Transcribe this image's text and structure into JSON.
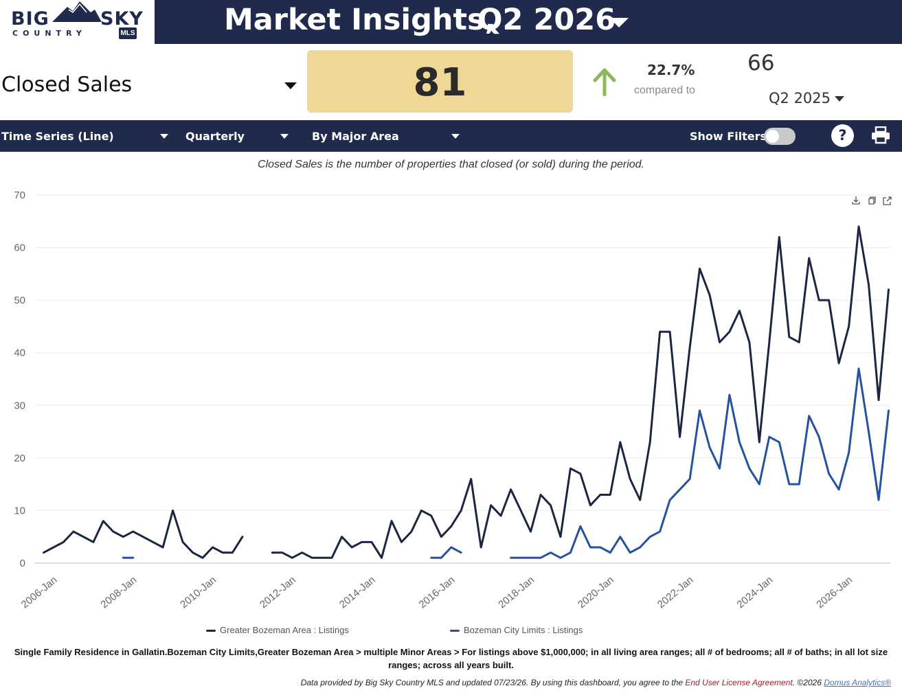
{
  "header": {
    "logo_big": "BIG",
    "logo_sky": "SKY",
    "logo_country": "COUNTRY",
    "logo_mls": "MLS",
    "title": "Market Insights,",
    "period": "Q2 2026"
  },
  "metric": {
    "name": "Closed Sales",
    "value": "81",
    "pct_change": "22.7%",
    "compared_to": "compared to",
    "prior_value": "66",
    "prior_period": "Q2 2025"
  },
  "toolbar": {
    "chart_type": "Time Series (Line)",
    "frequency": "Quarterly",
    "grouping": "By Major Area",
    "show_filters_label": "Show Filters:",
    "help_label": "?"
  },
  "description": "Closed Sales is the number of properties that closed (or sold) during the period.",
  "filter_description": "Single Family Residence in Gallatin.Bozeman City Limits,Greater Bozeman Area > multiple Minor Areas > For listings above $1,000,000; in all living area ranges; all # of bedrooms; all # of baths; in all lot size ranges; across all years built.",
  "footer": {
    "text": "Data provided by Big Sky Country MLS and updated 07/23/26.  By using this dashboard, you agree to the ",
    "eula": "End User License Agreement",
    "copyright": ".  ©2026 ",
    "domus": "Domus Analytics®"
  },
  "colors": {
    "navy": "#1f2a4d",
    "value_box": "#efd795",
    "up_arrow": "#8cb85c",
    "series_greater_bozeman": "#1c2541",
    "series_bozeman_city": "#2451a0"
  },
  "chart_data": {
    "type": "line",
    "x_start": "2005-Q4",
    "x_tick_labels": [
      "2006-Jan",
      "2008-Jan",
      "2010-Jan",
      "2012-Jan",
      "2014-Jan",
      "2016-Jan",
      "2018-Jan",
      "2020-Jan",
      "2022-Jan",
      "2024-Jan",
      "2026-Jan"
    ],
    "y_ticks": [
      0,
      10,
      20,
      30,
      40,
      50,
      60,
      70
    ],
    "ylim": [
      0,
      70
    ],
    "grid": true,
    "legend_position": "bottom",
    "series": [
      {
        "name": "Greater Bozeman Area : Listings",
        "color": "#1c2541",
        "values": [
          2,
          3,
          4,
          6,
          5,
          4,
          8,
          6,
          5,
          6,
          5,
          4,
          3,
          10,
          4,
          2,
          1,
          3,
          2,
          2,
          5,
          null,
          null,
          2,
          2,
          1,
          2,
          1,
          1,
          1,
          5,
          3,
          4,
          4,
          1,
          8,
          4,
          6,
          10,
          9,
          5,
          7,
          10,
          16,
          3,
          11,
          9,
          14,
          10,
          6,
          13,
          11,
          5,
          18,
          17,
          11,
          13,
          13,
          23,
          16,
          12,
          23,
          44,
          44,
          24,
          41,
          56,
          51,
          42,
          44,
          48,
          42,
          23,
          42,
          62,
          43,
          42,
          58,
          50,
          50,
          38,
          45,
          64,
          53,
          31,
          52
        ]
      },
      {
        "name": "Bozeman City Limits : Listings",
        "color": "#2451a0",
        "values": [
          null,
          null,
          null,
          null,
          null,
          null,
          null,
          null,
          1,
          1,
          null,
          null,
          null,
          null,
          null,
          null,
          null,
          null,
          null,
          null,
          null,
          null,
          null,
          null,
          null,
          null,
          null,
          null,
          null,
          null,
          null,
          null,
          null,
          null,
          null,
          null,
          null,
          null,
          null,
          1,
          1,
          3,
          2,
          null,
          null,
          null,
          null,
          1,
          1,
          1,
          1,
          2,
          1,
          2,
          7,
          3,
          3,
          2,
          5,
          2,
          3,
          5,
          6,
          12,
          14,
          16,
          29,
          22,
          18,
          32,
          23,
          18,
          15,
          24,
          23,
          15,
          15,
          28,
          24,
          17,
          14,
          21,
          37,
          25,
          12,
          29
        ]
      }
    ]
  }
}
